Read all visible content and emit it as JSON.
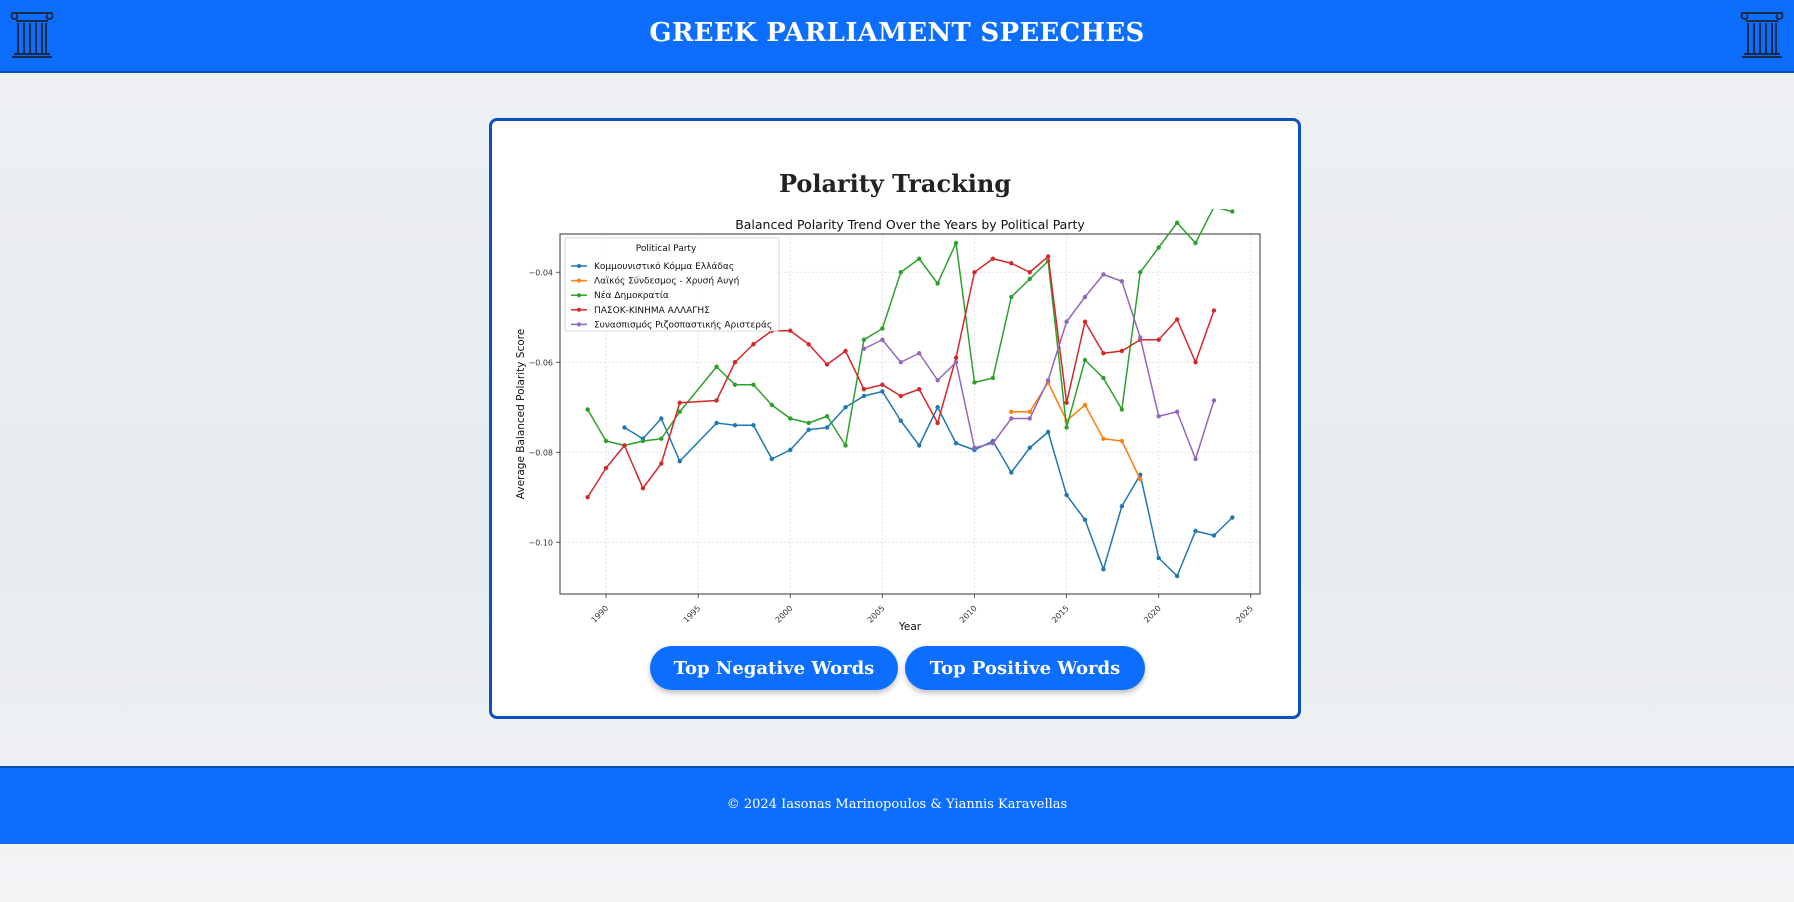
{
  "header": {
    "title": "GREEK PARLIAMENT SPEECHES",
    "left_icon": "greek-column-icon",
    "right_icon": "greek-column-icon"
  },
  "card": {
    "title": "Polarity Tracking",
    "buttons": {
      "negative_label": "Top Negative Words",
      "positive_label": "Top Positive Words"
    }
  },
  "footer": {
    "text": "© 2024 Iasonas Marinopoulos & Yiannis Karavellas"
  },
  "colors": {
    "primary": "#0d6efd",
    "border": "#0d4fbf"
  },
  "chart_data": {
    "type": "line",
    "title": "Balanced Polarity Trend Over the Years by Political Party",
    "xlabel": "Year",
    "ylabel": "Average Balanced Polarity Score",
    "xlim": [
      1987.5,
      2025.5
    ],
    "ylim": [
      -0.1115,
      -0.0315
    ],
    "xticks": [
      1990,
      1995,
      2000,
      2005,
      2010,
      2015,
      2020,
      2025
    ],
    "yticks": [
      -0.1,
      -0.08,
      -0.06,
      -0.04
    ],
    "grid": true,
    "legend": {
      "title": "Political Party",
      "placement": "top-left"
    },
    "series": [
      {
        "name": "Κομμουνιστικό Κόμμα Ελλάδας",
        "color": "#1f77b4",
        "points": [
          [
            1991,
            -0.0745
          ],
          [
            1992,
            -0.077
          ],
          [
            1993,
            -0.0725
          ],
          [
            1994,
            -0.082
          ],
          [
            1996,
            -0.0735
          ],
          [
            1997,
            -0.074
          ],
          [
            1998,
            -0.074
          ],
          [
            1999,
            -0.0815
          ],
          [
            2000,
            -0.0795
          ],
          [
            2001,
            -0.075
          ],
          [
            2002,
            -0.0745
          ],
          [
            2003,
            -0.07
          ],
          [
            2004,
            -0.0675
          ],
          [
            2005,
            -0.0665
          ],
          [
            2006,
            -0.073
          ],
          [
            2007,
            -0.0785
          ],
          [
            2008,
            -0.07
          ],
          [
            2009,
            -0.078
          ],
          [
            2010,
            -0.0795
          ],
          [
            2011,
            -0.0775
          ],
          [
            2012,
            -0.0845
          ],
          [
            2013,
            -0.079
          ],
          [
            2014,
            -0.0755
          ],
          [
            2015,
            -0.0895
          ],
          [
            2016,
            -0.095
          ],
          [
            2017,
            -0.106
          ],
          [
            2018,
            -0.092
          ],
          [
            2019,
            -0.085
          ],
          [
            2020,
            -0.1035
          ],
          [
            2021,
            -0.1075
          ],
          [
            2022,
            -0.0975
          ],
          [
            2023,
            -0.0985
          ],
          [
            2024,
            -0.0945
          ]
        ]
      },
      {
        "name": "Λαϊκός Σύνδεσμος - Χρυσή Αυγή",
        "color": "#ff7f0e",
        "points": [
          [
            2012,
            -0.071
          ],
          [
            2013,
            -0.071
          ],
          [
            2014,
            -0.0645
          ],
          [
            2015,
            -0.073
          ],
          [
            2016,
            -0.0695
          ],
          [
            2017,
            -0.077
          ],
          [
            2018,
            -0.0775
          ],
          [
            2019,
            -0.086
          ]
        ]
      },
      {
        "name": "Νέα Δημοκρατία",
        "color": "#2ca02c",
        "points": [
          [
            1989,
            -0.0705
          ],
          [
            1990,
            -0.0775
          ],
          [
            1991,
            -0.0785
          ],
          [
            1992,
            -0.0775
          ],
          [
            1993,
            -0.077
          ],
          [
            1994,
            -0.071
          ],
          [
            1996,
            -0.061
          ],
          [
            1997,
            -0.065
          ],
          [
            1998,
            -0.065
          ],
          [
            1999,
            -0.0695
          ],
          [
            2000,
            -0.0725
          ],
          [
            2001,
            -0.0735
          ],
          [
            2002,
            -0.072
          ],
          [
            2003,
            -0.0785
          ],
          [
            2004,
            -0.055
          ],
          [
            2005,
            -0.0525
          ],
          [
            2006,
            -0.04
          ],
          [
            2007,
            -0.037
          ],
          [
            2008,
            -0.0425
          ],
          [
            2009,
            -0.0335
          ],
          [
            2010,
            -0.0645
          ],
          [
            2011,
            -0.0635
          ],
          [
            2012,
            -0.0455
          ],
          [
            2013,
            -0.0415
          ],
          [
            2014,
            -0.0375
          ],
          [
            2015,
            -0.0745
          ],
          [
            2016,
            -0.0595
          ],
          [
            2017,
            -0.0635
          ],
          [
            2018,
            -0.0705
          ],
          [
            2019,
            -0.04
          ],
          [
            2020,
            -0.0345
          ],
          [
            2021,
            -0.029
          ],
          [
            2022,
            -0.0335
          ],
          [
            2023,
            -0.0255
          ],
          [
            2024,
            -0.0265
          ]
        ]
      },
      {
        "name": "ΠΑΣΟΚ-ΚΙΝΗΜΑ ΑΛΛΑΓΗΣ",
        "color": "#d62728",
        "points": [
          [
            1989,
            -0.09
          ],
          [
            1990,
            -0.0835
          ],
          [
            1991,
            -0.0785
          ],
          [
            1992,
            -0.088
          ],
          [
            1993,
            -0.0825
          ],
          [
            1994,
            -0.069
          ],
          [
            1996,
            -0.0685
          ],
          [
            1997,
            -0.06
          ],
          [
            1998,
            -0.056
          ],
          [
            1999,
            -0.053
          ],
          [
            2000,
            -0.053
          ],
          [
            2001,
            -0.056
          ],
          [
            2002,
            -0.0605
          ],
          [
            2003,
            -0.0575
          ],
          [
            2004,
            -0.066
          ],
          [
            2005,
            -0.065
          ],
          [
            2006,
            -0.0675
          ],
          [
            2007,
            -0.066
          ],
          [
            2008,
            -0.0735
          ],
          [
            2009,
            -0.059
          ],
          [
            2010,
            -0.04
          ],
          [
            2011,
            -0.037
          ],
          [
            2012,
            -0.038
          ],
          [
            2013,
            -0.04
          ],
          [
            2014,
            -0.0365
          ],
          [
            2015,
            -0.069
          ],
          [
            2016,
            -0.051
          ],
          [
            2017,
            -0.058
          ],
          [
            2018,
            -0.0575
          ],
          [
            2019,
            -0.055
          ],
          [
            2020,
            -0.055
          ],
          [
            2021,
            -0.0505
          ],
          [
            2022,
            -0.06
          ],
          [
            2023,
            -0.0485
          ]
        ]
      },
      {
        "name": "Συνασπισμός Ριζοσπαστικής Αριστεράς",
        "color": "#9467bd",
        "points": [
          [
            2004,
            -0.057
          ],
          [
            2005,
            -0.055
          ],
          [
            2006,
            -0.06
          ],
          [
            2007,
            -0.058
          ],
          [
            2008,
            -0.064
          ],
          [
            2009,
            -0.06
          ],
          [
            2010,
            -0.079
          ],
          [
            2011,
            -0.078
          ],
          [
            2012,
            -0.0725
          ],
          [
            2013,
            -0.0725
          ],
          [
            2014,
            -0.064
          ],
          [
            2015,
            -0.051
          ],
          [
            2016,
            -0.0455
          ],
          [
            2017,
            -0.0405
          ],
          [
            2018,
            -0.042
          ],
          [
            2019,
            -0.0545
          ],
          [
            2020,
            -0.072
          ],
          [
            2021,
            -0.071
          ],
          [
            2022,
            -0.0815
          ],
          [
            2023,
            -0.0685
          ]
        ]
      }
    ]
  }
}
